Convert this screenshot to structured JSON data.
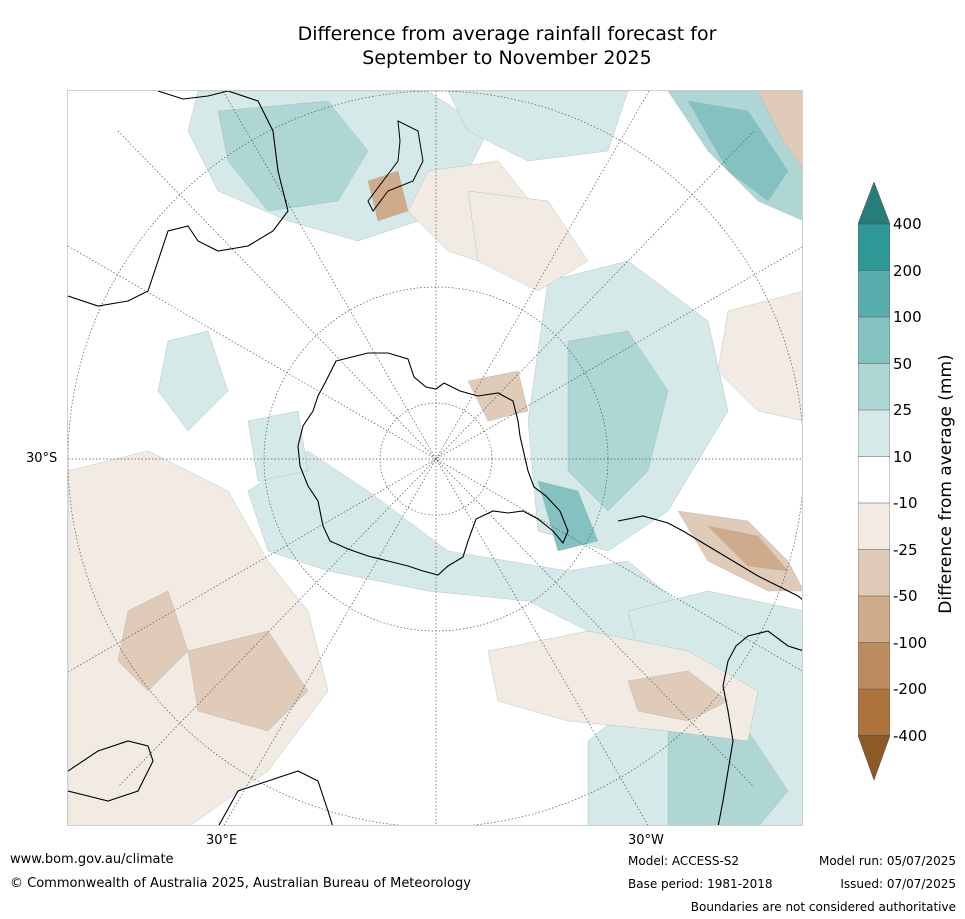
{
  "title": {
    "line1": "Difference from average rainfall forecast for",
    "line2": "September to November 2025"
  },
  "map": {
    "lat_label": "30°S",
    "lon_labels": {
      "east": "30°E",
      "west": "30°W"
    },
    "colors": {
      "wet_10_25": "#d5eae8",
      "wet_25_50": "#aed6d5",
      "wet_50_100": "#84c2c1",
      "wet_100_200": "#5aadad",
      "wet_200_400": "#2e9896",
      "wet_above_400": "#267e7c",
      "dry_-10_-25": "#f1ebe4",
      "dry_-25_-50": "#e0cab8",
      "dry_-50_-100": "#cfab8c",
      "dry_-100_-200": "#bd8c60",
      "dry_-200_-400": "#ac733c",
      "dry_below_-400": "#8d5a25"
    }
  },
  "colorbar": {
    "title": "Difference from average (mm)",
    "ticks": [
      "400",
      "200",
      "100",
      "50",
      "25",
      "10",
      "-10",
      "-25",
      "-50",
      "-100",
      "-200",
      "-400"
    ]
  },
  "footer": {
    "url": "www.bom.gov.au/climate",
    "copyright": "© Commonwealth of Australia 2025, Australian Bureau of Meteorology",
    "model": "Model: ACCESS-S2",
    "base_period": "Base period: 1981-2018",
    "model_run": "Model run: 05/07/2025",
    "issued": "Issued: 07/07/2025",
    "disclaimer": "Boundaries are not considered authoritative"
  }
}
